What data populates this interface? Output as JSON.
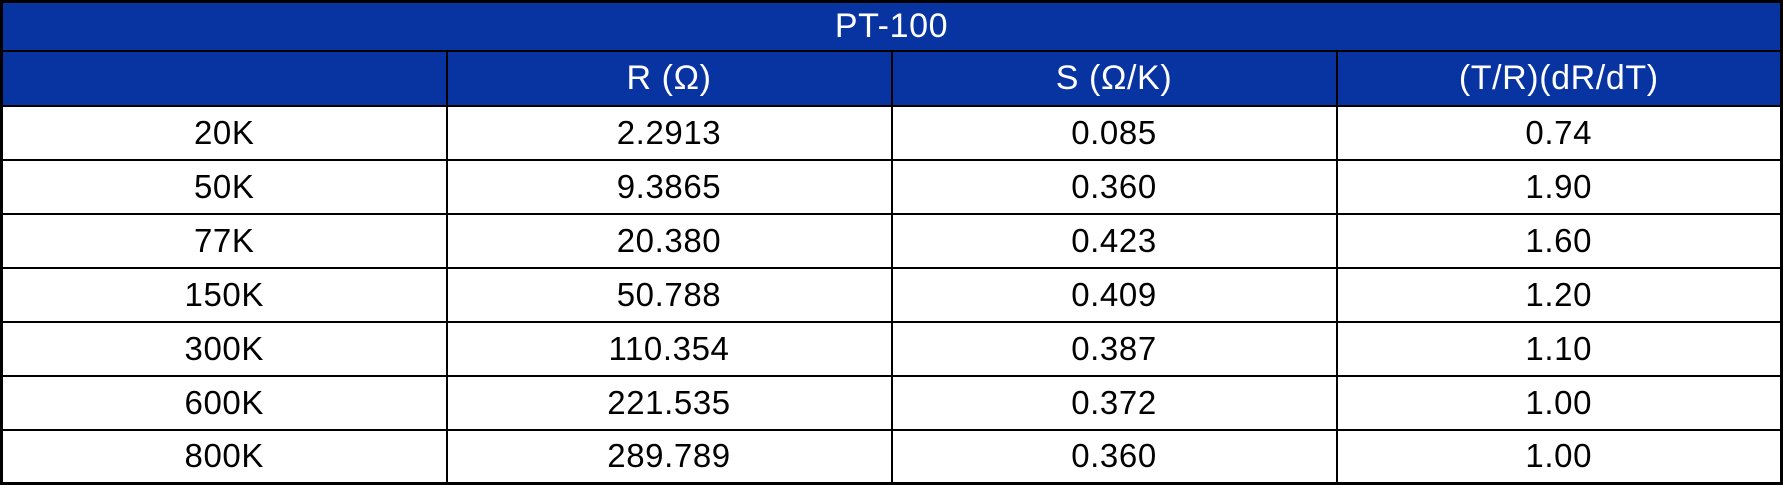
{
  "table": {
    "title": "PT-100",
    "columns": [
      "",
      "R (Ω)",
      "S (Ω/K)",
      "(T/R)(dR/dT)"
    ],
    "rows": [
      [
        "20K",
        "2.2913",
        "0.085",
        "0.74"
      ],
      [
        "50K",
        "9.3865",
        "0.360",
        "1.90"
      ],
      [
        "77K",
        "20.380",
        "0.423",
        "1.60"
      ],
      [
        "150K",
        "50.788",
        "0.409",
        "1.20"
      ],
      [
        "300K",
        "110.354",
        "0.387",
        "1.10"
      ],
      [
        "600K",
        "221.535",
        "0.372",
        "1.00"
      ],
      [
        "800K",
        "289.789",
        "0.360",
        "1.00"
      ]
    ]
  },
  "colors": {
    "header_bg": "#0834A2",
    "header_text": "#FFFFFF",
    "body_bg": "#FFFFFF",
    "body_text": "#000000",
    "border": "#000000"
  }
}
